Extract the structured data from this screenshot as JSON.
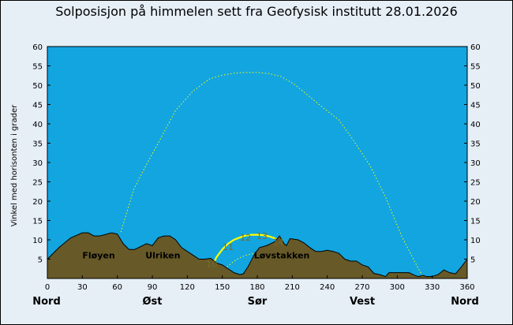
{
  "chart_data": {
    "type": "area",
    "title": "Solposisjon på himmelen sett fra Geofysisk institutt 28.01.2026",
    "ylabel": "Vinkel med horisonten i grader",
    "xlim": [
      0,
      360
    ],
    "ylim": [
      0,
      60
    ],
    "x_ticks": [
      0,
      30,
      60,
      90,
      120,
      150,
      180,
      210,
      240,
      270,
      300,
      330,
      360
    ],
    "y_ticks": [
      5,
      10,
      15,
      20,
      25,
      30,
      35,
      40,
      45,
      50,
      55,
      60
    ],
    "compass_labels": [
      {
        "label": "Nord",
        "az": 0
      },
      {
        "label": "Øst",
        "az": 90
      },
      {
        "label": "Sør",
        "az": 180
      },
      {
        "label": "Vest",
        "az": 270
      },
      {
        "label": "Nord",
        "az": 360
      }
    ],
    "colors": {
      "sky": "#12a5e0",
      "terrain": "#675a28",
      "sun_path": "#ffff00",
      "hour_label": "#7a6a28",
      "background": "#e6eef6"
    },
    "terrain": {
      "az": [
        0,
        10,
        20,
        30,
        35,
        40,
        45,
        55,
        60,
        65,
        70,
        75,
        85,
        90,
        95,
        100,
        105,
        110,
        115,
        125,
        130,
        135,
        140,
        145,
        150,
        155,
        160,
        165,
        168,
        172,
        178,
        182,
        188,
        195,
        199,
        203,
        205,
        208,
        215,
        220,
        225,
        230,
        235,
        240,
        245,
        250,
        255,
        260,
        265,
        270,
        275,
        280,
        285,
        290,
        293,
        300,
        310,
        315,
        318,
        322,
        325,
        330,
        335,
        340,
        345,
        350,
        355,
        360
      ],
      "elev": [
        5,
        8,
        10.5,
        11.8,
        11.8,
        11,
        11,
        11.8,
        11.5,
        9,
        7.5,
        7.5,
        9,
        8.5,
        10.5,
        11,
        11,
        10,
        8,
        6,
        5,
        5,
        5.2,
        4,
        3.5,
        2.5,
        1.5,
        1,
        1.2,
        3,
        6.5,
        8,
        8.5,
        9.5,
        11,
        9,
        8.5,
        10.3,
        10,
        9.2,
        8,
        7,
        7,
        7.3,
        7,
        6.5,
        5,
        4.5,
        4.5,
        3.5,
        3,
        1.3,
        1,
        0.5,
        1.5,
        1.5,
        1.5,
        0.8,
        0.5,
        0.8,
        0.5,
        0.5,
        1,
        2.2,
        1.5,
        1.2,
        3,
        5
      ]
    },
    "mountain_labels": [
      {
        "label": "Fløyen",
        "az": 44,
        "elev": 6
      },
      {
        "label": "Ulriken",
        "az": 99,
        "elev": 6
      },
      {
        "label": "Løvstakken",
        "az": 201,
        "elev": 6
      }
    ],
    "sun_path_today": {
      "az": [
        142,
        145,
        150,
        155,
        160,
        165,
        170,
        175,
        180,
        185,
        190,
        195,
        201
      ],
      "elev": [
        3.5,
        5.5,
        7.5,
        9,
        10,
        10.6,
        11.1,
        11.3,
        11.3,
        11.2,
        10.9,
        10.4,
        9.3
      ]
    },
    "hour_labels": [
      {
        "label": "10",
        "az": 141,
        "elev": 3.8
      },
      {
        "label": "11",
        "az": 155,
        "elev": 8.2
      },
      {
        "label": "12",
        "az": 170,
        "elev": 10.6
      },
      {
        "label": "13",
        "az": 184,
        "elev": 11
      },
      {
        "label": "14",
        "az": 198,
        "elev": 9.5
      }
    ],
    "summer_solstice_path": {
      "az": [
        63,
        74,
        85,
        95,
        110,
        125,
        139,
        150,
        160,
        170,
        180,
        190,
        200,
        212,
        223,
        235,
        250,
        263,
        277,
        290,
        304,
        318,
        322
      ],
      "elev": [
        12,
        23,
        29.5,
        35,
        43.5,
        48.5,
        51.6,
        52.6,
        53.1,
        53.3,
        53.3,
        53,
        52.3,
        50.2,
        47.5,
        44.5,
        41,
        35.5,
        29,
        21,
        10.8,
        2.6,
        0.5
      ]
    },
    "winter_solstice_path": {
      "az": [
        152,
        158,
        164,
        170,
        176,
        182,
        188
      ],
      "elev": [
        2.5,
        4,
        5.2,
        6,
        6.4,
        6.6,
        6.8
      ]
    }
  }
}
